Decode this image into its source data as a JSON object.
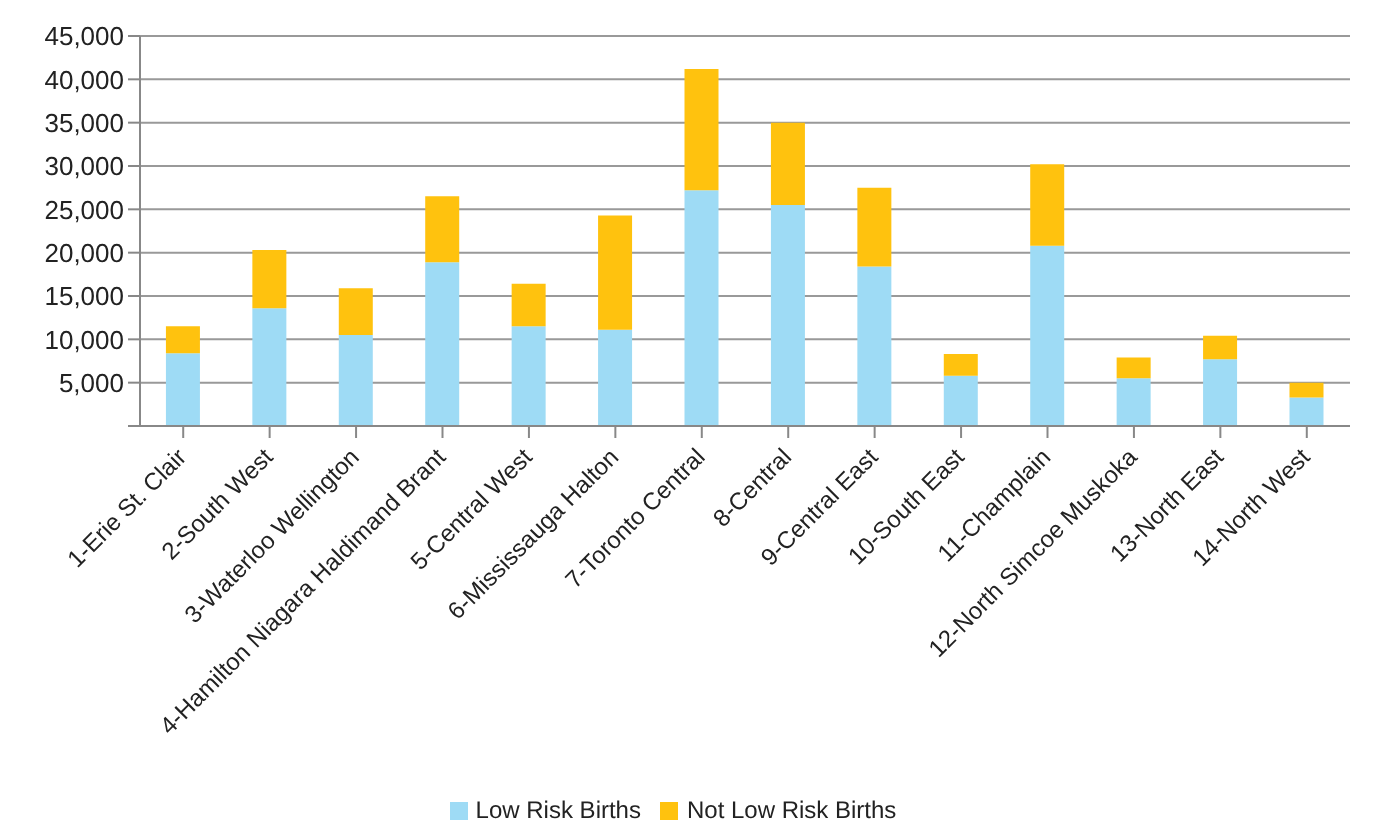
{
  "chart_data": {
    "type": "bar",
    "stacked": true,
    "categories": [
      "1-Erie St. Clair",
      "2-South West",
      "3-Waterloo Wellington",
      "4-Hamilton Niagara Haldimand Brant",
      "5-Central West",
      "6-Mississauga Halton",
      "7-Toronto Central",
      "8-Central",
      "9-Central East",
      "10-South East",
      "11-Champlain",
      "12-North Simcoe Muskoka",
      "13-North East",
      "14-North West"
    ],
    "series": [
      {
        "name": "Low Risk Births",
        "color": "#9edbf5",
        "values": [
          8400,
          13600,
          10500,
          18900,
          11500,
          11100,
          27200,
          25500,
          18400,
          5800,
          20800,
          5500,
          7700,
          3300
        ]
      },
      {
        "name": "Not Low Risk Births",
        "color": "#ffc20e",
        "values": [
          3100,
          6700,
          5400,
          7600,
          4900,
          13200,
          14000,
          9500,
          9100,
          2500,
          9400,
          2400,
          2700,
          1700
        ]
      }
    ],
    "ylim": [
      0,
      45000
    ],
    "yticks": [
      {
        "value": 0,
        "label": null
      },
      {
        "value": 5000,
        "label": "5,000"
      },
      {
        "value": 10000,
        "label": "10,000"
      },
      {
        "value": 15000,
        "label": "15,000"
      },
      {
        "value": 20000,
        "label": "20,000"
      },
      {
        "value": 25000,
        "label": "25,000"
      },
      {
        "value": 30000,
        "label": "30,000"
      },
      {
        "value": 35000,
        "label": "35,000"
      },
      {
        "value": 40000,
        "label": "40,000"
      },
      {
        "value": 45000,
        "label": "45,000"
      }
    ],
    "grid": "y",
    "legend": "bottom"
  }
}
